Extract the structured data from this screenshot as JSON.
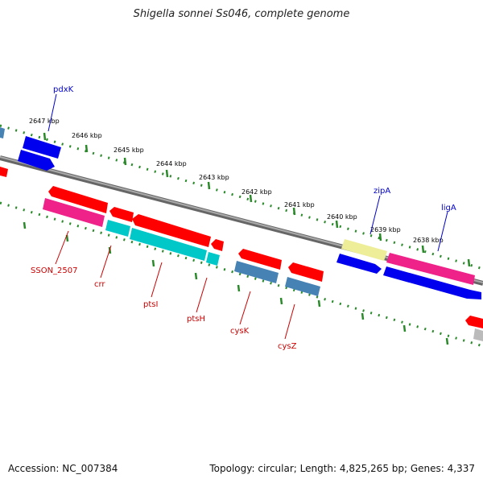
{
  "title": "Shigella sonnei Ss046, complete genome",
  "accession": "Accession: NC_007384",
  "topology": "Topology: circular; Length: 4,825,265 bp; Genes: 4,337",
  "colors": {
    "backbone": "#888888",
    "tick_dots": "#2a8a2a",
    "red_gene": "#ff0000",
    "blue_gene": "#0000ee",
    "cyan_gene": "#00c8c8",
    "magenta_gene": "#ee2288",
    "steelblue_gene": "#4682b4",
    "khaki_gene": "#eeee99",
    "gray_gene": "#bbbbbb",
    "label_red": "#cc0000",
    "label_blue": "#0000cc"
  },
  "ticks": [
    "2647 kbp",
    "2646 kbp",
    "2645 kbp",
    "2644 kbp",
    "2643 kbp",
    "2642 kbp",
    "2641 kbp",
    "2640 kbp",
    "2639 kbp",
    "2638 kbp"
  ],
  "gene_labels": [
    {
      "name": "pdxK",
      "strand": "forward"
    },
    {
      "name": "zipA",
      "strand": "forward"
    },
    {
      "name": "ligA",
      "strand": "forward"
    },
    {
      "name": "SSON_2507",
      "strand": "reverse"
    },
    {
      "name": "crr",
      "strand": "reverse"
    },
    {
      "name": "ptsI",
      "strand": "reverse"
    },
    {
      "name": "ptsH",
      "strand": "reverse"
    },
    {
      "name": "cysK",
      "strand": "reverse"
    },
    {
      "name": "cysZ",
      "strand": "reverse"
    }
  ]
}
